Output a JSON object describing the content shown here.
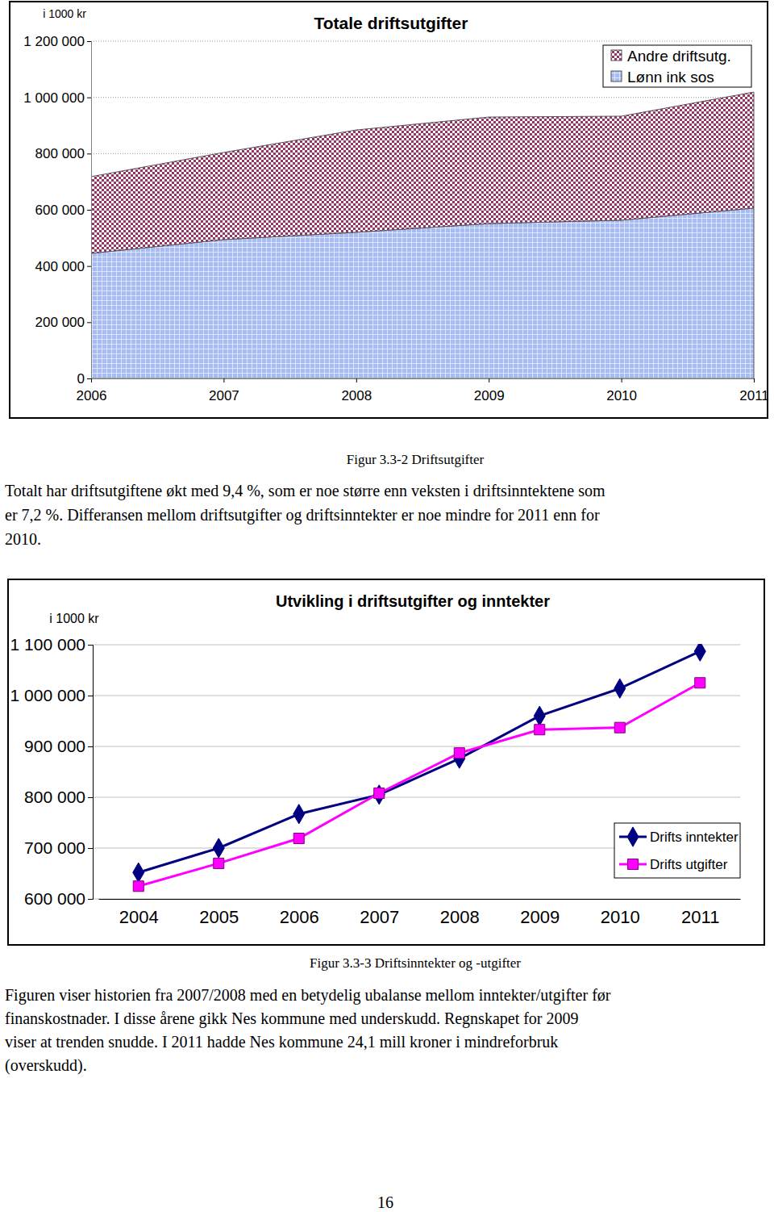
{
  "chart_data": [
    {
      "type": "area",
      "stacked": true,
      "title": "Totale driftsutgifter",
      "ylabel": "i 1000 kr",
      "categories": [
        "2006",
        "2007",
        "2008",
        "2009",
        "2010",
        "2011"
      ],
      "series": [
        {
          "name": "Lønn ink sos",
          "color": "#a6bcf2",
          "values": [
            445000,
            494000,
            520000,
            551000,
            563000,
            606000
          ]
        },
        {
          "name": "Andre driftsutg.",
          "color": "#993366",
          "values": [
            273000,
            310000,
            364000,
            379000,
            370000,
            413000
          ]
        }
      ],
      "ylim": [
        0,
        1200000
      ],
      "yticks": [
        0,
        {
          "value": 200000,
          "label": "200 000"
        },
        {
          "value": 400000,
          "label": "400 000"
        },
        {
          "value": 600000,
          "label": "600 000"
        },
        {
          "value": 800000,
          "label": "800 000"
        },
        {
          "value": 1000000,
          "label": "1 000 000"
        },
        {
          "value": 1200000,
          "label": "1 200 000"
        }
      ],
      "grid": true,
      "legend": "top-right"
    },
    {
      "type": "line",
      "title": "Utvikling i driftsutgifter og inntekter",
      "ylabel": "i 1000 kr",
      "categories": [
        "2004",
        "2005",
        "2006",
        "2007",
        "2008",
        "2009",
        "2010",
        "2011"
      ],
      "series": [
        {
          "name": "Drifts inntekter",
          "color": "#000080",
          "marker": "diamond",
          "line_style": "solid",
          "values": [
            652000,
            700000,
            767000,
            805000,
            876000,
            960000,
            1014000,
            1087000
          ]
        },
        {
          "name": "Drifts utgifter",
          "color": "#ff00ff",
          "marker": "square",
          "line_style": "solid",
          "values": [
            625000,
            670000,
            719000,
            808000,
            887000,
            933000,
            937000,
            1025000
          ]
        }
      ],
      "ylim": [
        600000,
        1100000
      ],
      "yticks": [
        {
          "value": 600000,
          "label": "600 000"
        },
        {
          "value": 700000,
          "label": "700 000"
        },
        {
          "value": 800000,
          "label": "800 000"
        },
        {
          "value": 900000,
          "label": "900 000"
        },
        {
          "value": 1000000,
          "label": "1 000 000"
        },
        {
          "value": 1100000,
          "label": "1 100 000"
        }
      ],
      "grid": true,
      "legend": "bottom-right"
    }
  ],
  "captions": [
    "Figur 3.3-2 Driftsutgifter",
    "Figur 3.3-3 Driftsinntekter og -utgifter"
  ],
  "paragraphs": [
    [
      "Totalt har driftsutgiftene økt med 9,4 %, som er noe større enn veksten i driftsinntektene som",
      "er 7,2 %. Differansen mellom driftsutgifter og driftsinntekter er noe mindre for 2011 enn for",
      "2010."
    ],
    [
      "Figuren viser historien fra 2007/2008 med en betydelig ubalanse mellom inntekter/utgifter før",
      "finanskostnader. I disse årene gikk Nes kommune med underskudd. Regnskapet for 2009",
      "viser at trenden snudde. I 2011 hadde Nes kommune 24,1 mill kroner i mindreforbruk",
      "(overskudd)."
    ]
  ],
  "page_number": "16"
}
